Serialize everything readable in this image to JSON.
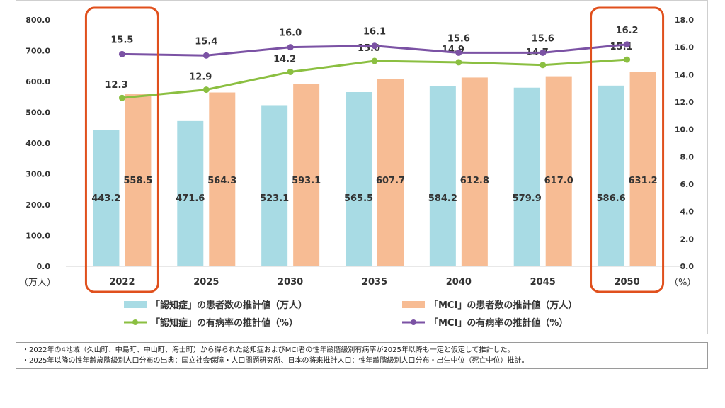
{
  "chart_data": {
    "type": "bar",
    "categories": [
      "2022",
      "2025",
      "2030",
      "2035",
      "2040",
      "2045",
      "2050"
    ],
    "series": [
      {
        "name": "「認知症」の患者数の推計値（万人）",
        "kind": "bar",
        "axis": "left",
        "color": "#a8dbe4",
        "values": [
          443.2,
          471.6,
          523.1,
          565.5,
          584.2,
          579.9,
          586.6
        ],
        "labels": [
          "443.2",
          "471.6",
          "523.1",
          "565.5",
          "584.2",
          "579.9",
          "586.6"
        ]
      },
      {
        "name": "「MCI」の患者数の推計値（万人）",
        "kind": "bar",
        "axis": "left",
        "color": "#f7bc94",
        "values": [
          558.5,
          564.3,
          593.1,
          607.7,
          612.8,
          617.0,
          631.2
        ],
        "labels": [
          "558.5",
          "564.3",
          "593.1",
          "607.7",
          "612.8",
          "617.0",
          "631.2"
        ]
      },
      {
        "name": "「認知症」の有病率の推計値（%）",
        "kind": "line",
        "axis": "right",
        "color": "#8bbf41",
        "values": [
          12.3,
          12.9,
          14.2,
          15.0,
          14.9,
          14.7,
          15.1
        ],
        "labels": [
          "12.3",
          "12.9",
          "14.2",
          "15.0",
          "14.9",
          "14.7",
          "15.1"
        ]
      },
      {
        "name": "「MCI」の有病率の推計値（%）",
        "kind": "line",
        "axis": "right",
        "color": "#7b52a4",
        "values": [
          15.5,
          15.4,
          16.0,
          16.1,
          15.6,
          15.6,
          16.2
        ],
        "labels": [
          "15.5",
          "15.4",
          "16.0",
          "16.1",
          "15.6",
          "15.6",
          "16.2"
        ]
      }
    ],
    "y_left": {
      "range": [
        0,
        800
      ],
      "ticks": [
        "0.0",
        "100.0",
        "200.0",
        "300.0",
        "400.0",
        "500.0",
        "600.0",
        "700.0",
        "800.0"
      ],
      "unit_label": "（万人）"
    },
    "y_right": {
      "range": [
        0,
        18
      ],
      "ticks": [
        "0.0",
        "2.0",
        "4.0",
        "6.0",
        "8.0",
        "10.0",
        "12.0",
        "14.0",
        "16.0",
        "18.0"
      ],
      "unit_label": "（%）"
    },
    "highlighted_categories": [
      "2022",
      "2050"
    ],
    "highlight_color": "#e0501d",
    "grid": false,
    "legend_position": "bottom"
  },
  "notes": [
    "・2022年の4地域（久山町、中島町、中山町、海士町）から得られた認知症およびMCI者の性年齢階級別有病率が2025年以降も一定と仮定して推計した。",
    "・2025年以降の性年齢歳階級別人口分布の出典：国立社会保障・人口問題研究所、日本の将来推計人口：性年齢階級別人口分布・出生中位（死亡中位）推計。"
  ]
}
